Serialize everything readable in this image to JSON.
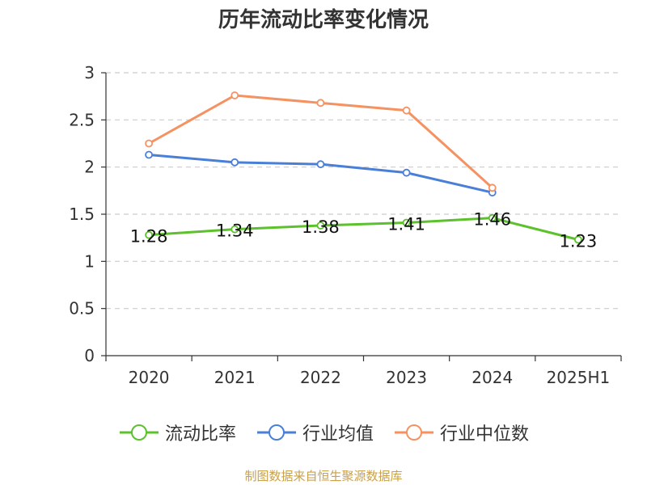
{
  "title": "历年流动比率变化情况",
  "source": "制图数据来自恒生聚源数据库",
  "chart_data": {
    "type": "line",
    "title": "历年流动比率变化情况",
    "categories": [
      "2020",
      "2021",
      "2022",
      "2023",
      "2024",
      "2025H1"
    ],
    "ylim": [
      0,
      3
    ],
    "yticks": [
      "0",
      "0.5",
      "1",
      "1.5",
      "2",
      "2.5",
      "3"
    ],
    "grid": true,
    "legend_position": "bottom",
    "series": [
      {
        "name": "流动比率",
        "color": "#5cc12c",
        "values": [
          1.28,
          1.34,
          1.38,
          1.41,
          1.46,
          1.23
        ],
        "labels": [
          "1.28",
          "1.34",
          "1.38",
          "1.41",
          "1.46",
          "1.23"
        ]
      },
      {
        "name": "行业均值",
        "color": "#4a7fd8",
        "values": [
          2.13,
          2.05,
          2.03,
          1.94,
          1.73,
          null
        ]
      },
      {
        "name": "行业中位数",
        "color": "#f59262",
        "values": [
          2.25,
          2.76,
          2.68,
          2.6,
          1.78,
          null
        ]
      }
    ]
  }
}
